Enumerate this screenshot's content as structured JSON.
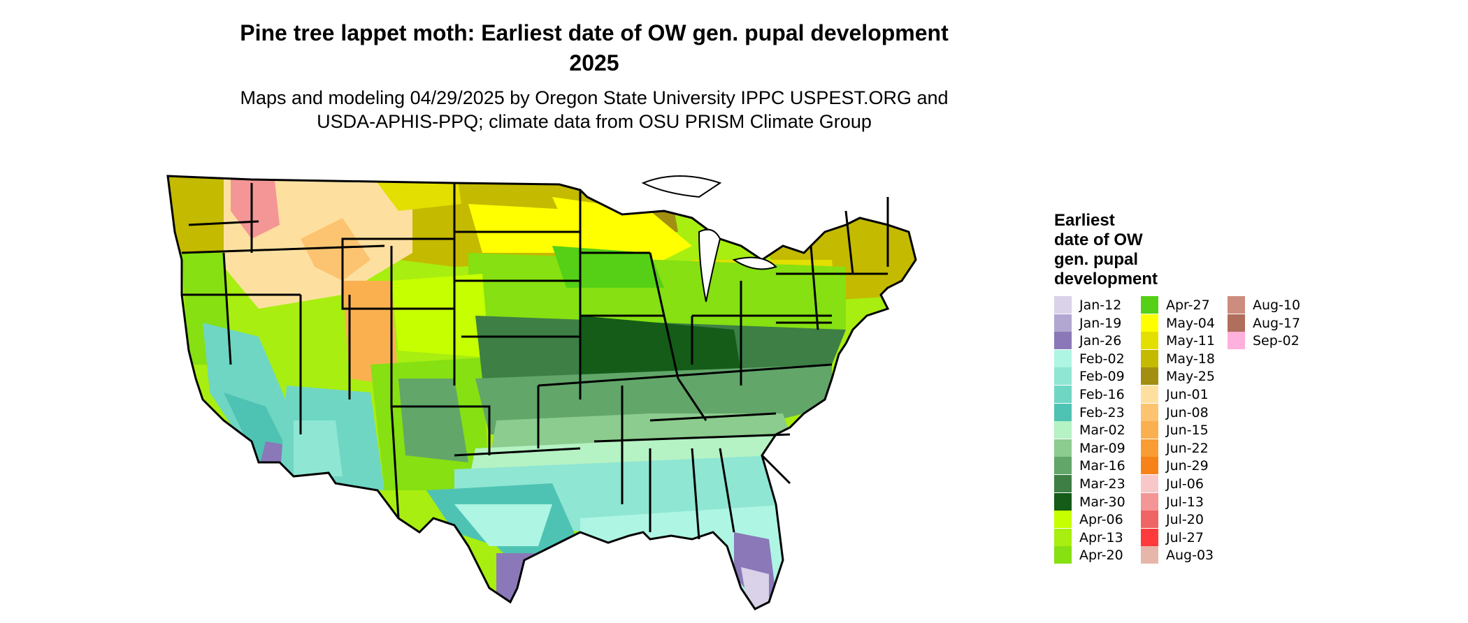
{
  "title_line1": "Pine tree lappet moth: Earliest date of OW gen. pupal development",
  "title_line2": "2025",
  "subtitle_line1": "Maps and modeling 04/29/2025 by Oregon State University IPPC USPEST.ORG and",
  "subtitle_line2": "USDA-APHIS-PPQ; climate data from OSU PRISM Climate Group",
  "legend": {
    "title_lines": [
      "Earliest",
      "date of OW",
      "gen. pupal",
      "development"
    ],
    "items": [
      {
        "label": "Jan-12",
        "color": "#d9d2e8"
      },
      {
        "label": "Jan-19",
        "color": "#b2a7d1"
      },
      {
        "label": "Jan-26",
        "color": "#8a78b8"
      },
      {
        "label": "Feb-02",
        "color": "#aef5e3"
      },
      {
        "label": "Feb-09",
        "color": "#8ee6d3"
      },
      {
        "label": "Feb-16",
        "color": "#6fd6c4"
      },
      {
        "label": "Feb-23",
        "color": "#4fc3b3"
      },
      {
        "label": "Mar-02",
        "color": "#b5f2c4"
      },
      {
        "label": "Mar-09",
        "color": "#8ccc8e"
      },
      {
        "label": "Mar-16",
        "color": "#62a66a"
      },
      {
        "label": "Mar-23",
        "color": "#3d7f45"
      },
      {
        "label": "Mar-30",
        "color": "#145c18"
      },
      {
        "label": "Apr-06",
        "color": "#c6ff00"
      },
      {
        "label": "Apr-13",
        "color": "#a8ee10"
      },
      {
        "label": "Apr-20",
        "color": "#86e012"
      },
      {
        "label": "Apr-27",
        "color": "#55d016"
      },
      {
        "label": "May-04",
        "color": "#ffff00"
      },
      {
        "label": "May-11",
        "color": "#e3df00"
      },
      {
        "label": "May-18",
        "color": "#c4ba00"
      },
      {
        "label": "May-25",
        "color": "#a28f10"
      },
      {
        "label": "Jun-01",
        "color": "#fde0a0"
      },
      {
        "label": "Jun-08",
        "color": "#fcc470"
      },
      {
        "label": "Jun-15",
        "color": "#fbb050"
      },
      {
        "label": "Jun-22",
        "color": "#fa9c34"
      },
      {
        "label": "Jun-29",
        "color": "#f7821a"
      },
      {
        "label": "Jul-06",
        "color": "#f8c8c8"
      },
      {
        "label": "Jul-13",
        "color": "#f49696"
      },
      {
        "label": "Jul-20",
        "color": "#ef6464"
      },
      {
        "label": "Jul-27",
        "color": "#ff3a3a"
      },
      {
        "label": "Aug-03",
        "color": "#e6b6aa"
      },
      {
        "label": "Aug-10",
        "color": "#cc8c7e"
      },
      {
        "label": "Aug-17",
        "color": "#b06e5c"
      },
      {
        "label": "Sep-02",
        "color": "#ffb0dc"
      }
    ]
  }
}
